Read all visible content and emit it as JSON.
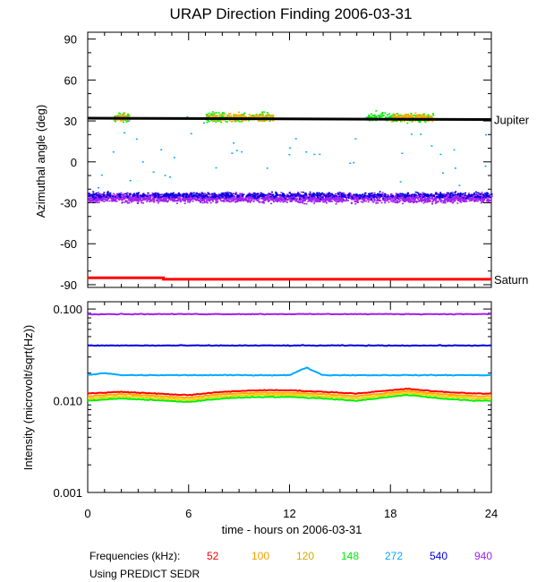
{
  "chart_data": [
    {
      "type": "scatter",
      "title": "URAP Direction Finding  2006-03-31",
      "ylabel": "Azimuthal angle (deg)",
      "xlim": [
        0,
        24
      ],
      "ylim": [
        -92,
        95
      ],
      "yticks": [
        "90",
        "60",
        "30",
        "0",
        "-30",
        "-60",
        "-90"
      ],
      "reference_lines": [
        {
          "name": "Jupiter",
          "color": "#000000",
          "x": [
            0,
            24
          ],
          "y": [
            32,
            31
          ]
        },
        {
          "name": "Saturn",
          "color": "#ff0000",
          "x": [
            0,
            4.5,
            4.5,
            24
          ],
          "y": [
            -85,
            -85,
            -86,
            -86
          ]
        }
      ],
      "series": [
        {
          "name": "940",
          "color": "#a020f0",
          "pattern": "continuous band",
          "center_deg": -26,
          "spread_deg": 5
        },
        {
          "name": "540",
          "color": "#0000dd",
          "pattern": "continuous band",
          "center_deg": -24,
          "spread_deg": 3
        },
        {
          "name": "148",
          "color": "#00ee00",
          "pattern": "clusters near Jupiter direction",
          "center_deg": 33,
          "spread_deg": 5,
          "clusters_hours": [
            [
              1.5,
              2.5
            ],
            [
              7.0,
              11.0
            ],
            [
              16.5,
              20.5
            ]
          ]
        },
        {
          "name": "120",
          "color": "#ffaa00",
          "pattern": "clusters near Jupiter direction",
          "center_deg": 33,
          "spread_deg": 4,
          "clusters_hours": [
            [
              1.5,
              2.5
            ],
            [
              7.0,
              11.0
            ],
            [
              18.0,
              20.5
            ]
          ]
        },
        {
          "name": "272",
          "color": "#00aaff",
          "pattern": "sparse scatter",
          "center_deg": 5,
          "spread_deg": 40
        }
      ]
    },
    {
      "type": "line",
      "ylabel": "Intensity (microvolt/sqrt(Hz))",
      "xlabel": "time - hours on 2006-03-31",
      "x_tick_labels": [
        "0",
        "6",
        "12",
        "18",
        "24"
      ],
      "xlim": [
        0,
        24
      ],
      "yscale": "log",
      "ylim": [
        0.001,
        0.12
      ],
      "yticks": [
        "0.100",
        "0.010",
        "0.001"
      ],
      "series": [
        {
          "name": "940",
          "color": "#a020f0",
          "x": [
            0,
            24
          ],
          "values": [
            0.088,
            0.088
          ]
        },
        {
          "name": "540",
          "color": "#0000dd",
          "x": [
            0,
            24
          ],
          "values": [
            0.04,
            0.04
          ]
        },
        {
          "name": "272",
          "color": "#00aaff",
          "x": [
            0,
            1,
            2,
            6,
            10,
            12,
            13,
            14,
            16,
            20,
            23,
            24
          ],
          "values": [
            0.019,
            0.02,
            0.019,
            0.019,
            0.019,
            0.019,
            0.023,
            0.019,
            0.019,
            0.019,
            0.019,
            0.019
          ]
        },
        {
          "name": "52",
          "color": "#ff0000",
          "x": [
            0,
            2,
            6,
            8,
            10,
            12,
            14,
            16,
            19,
            21,
            23,
            24
          ],
          "values": [
            0.012,
            0.0125,
            0.0115,
            0.0125,
            0.013,
            0.013,
            0.0125,
            0.012,
            0.0135,
            0.0125,
            0.012,
            0.012
          ]
        },
        {
          "name": "120",
          "color": "#ffaa00",
          "x": [
            0,
            2,
            6,
            8,
            10,
            12,
            14,
            16,
            19,
            21,
            23,
            24
          ],
          "values": [
            0.0112,
            0.0118,
            0.0108,
            0.0118,
            0.0122,
            0.0122,
            0.0118,
            0.0112,
            0.0128,
            0.0118,
            0.0112,
            0.0112
          ]
        },
        {
          "name": "100",
          "color": "#f5d000",
          "x": [
            0,
            2,
            6,
            8,
            10,
            12,
            14,
            16,
            19,
            21,
            23,
            24
          ],
          "values": [
            0.0106,
            0.0112,
            0.0102,
            0.0112,
            0.0116,
            0.0116,
            0.0112,
            0.0106,
            0.0122,
            0.0112,
            0.0106,
            0.0106
          ]
        },
        {
          "name": "148",
          "color": "#00ee00",
          "x": [
            0,
            2,
            6,
            8,
            10,
            12,
            14,
            16,
            19,
            21,
            23,
            24
          ],
          "values": [
            0.01,
            0.0106,
            0.0097,
            0.0106,
            0.011,
            0.011,
            0.0106,
            0.01,
            0.0116,
            0.0106,
            0.01,
            0.01
          ]
        }
      ]
    }
  ],
  "legend": {
    "label": "Frequencies (kHz):",
    "items": [
      {
        "text": "52",
        "color": "#ff0000"
      },
      {
        "text": "100",
        "color": "#f5a000"
      },
      {
        "text": "120",
        "color": "#d8a800"
      },
      {
        "text": "148",
        "color": "#00ee00"
      },
      {
        "text": "272",
        "color": "#00aaff"
      },
      {
        "text": "540",
        "color": "#0000dd"
      },
      {
        "text": "940",
        "color": "#a020f0"
      }
    ]
  },
  "footnote": "Using PREDICT SEDR"
}
